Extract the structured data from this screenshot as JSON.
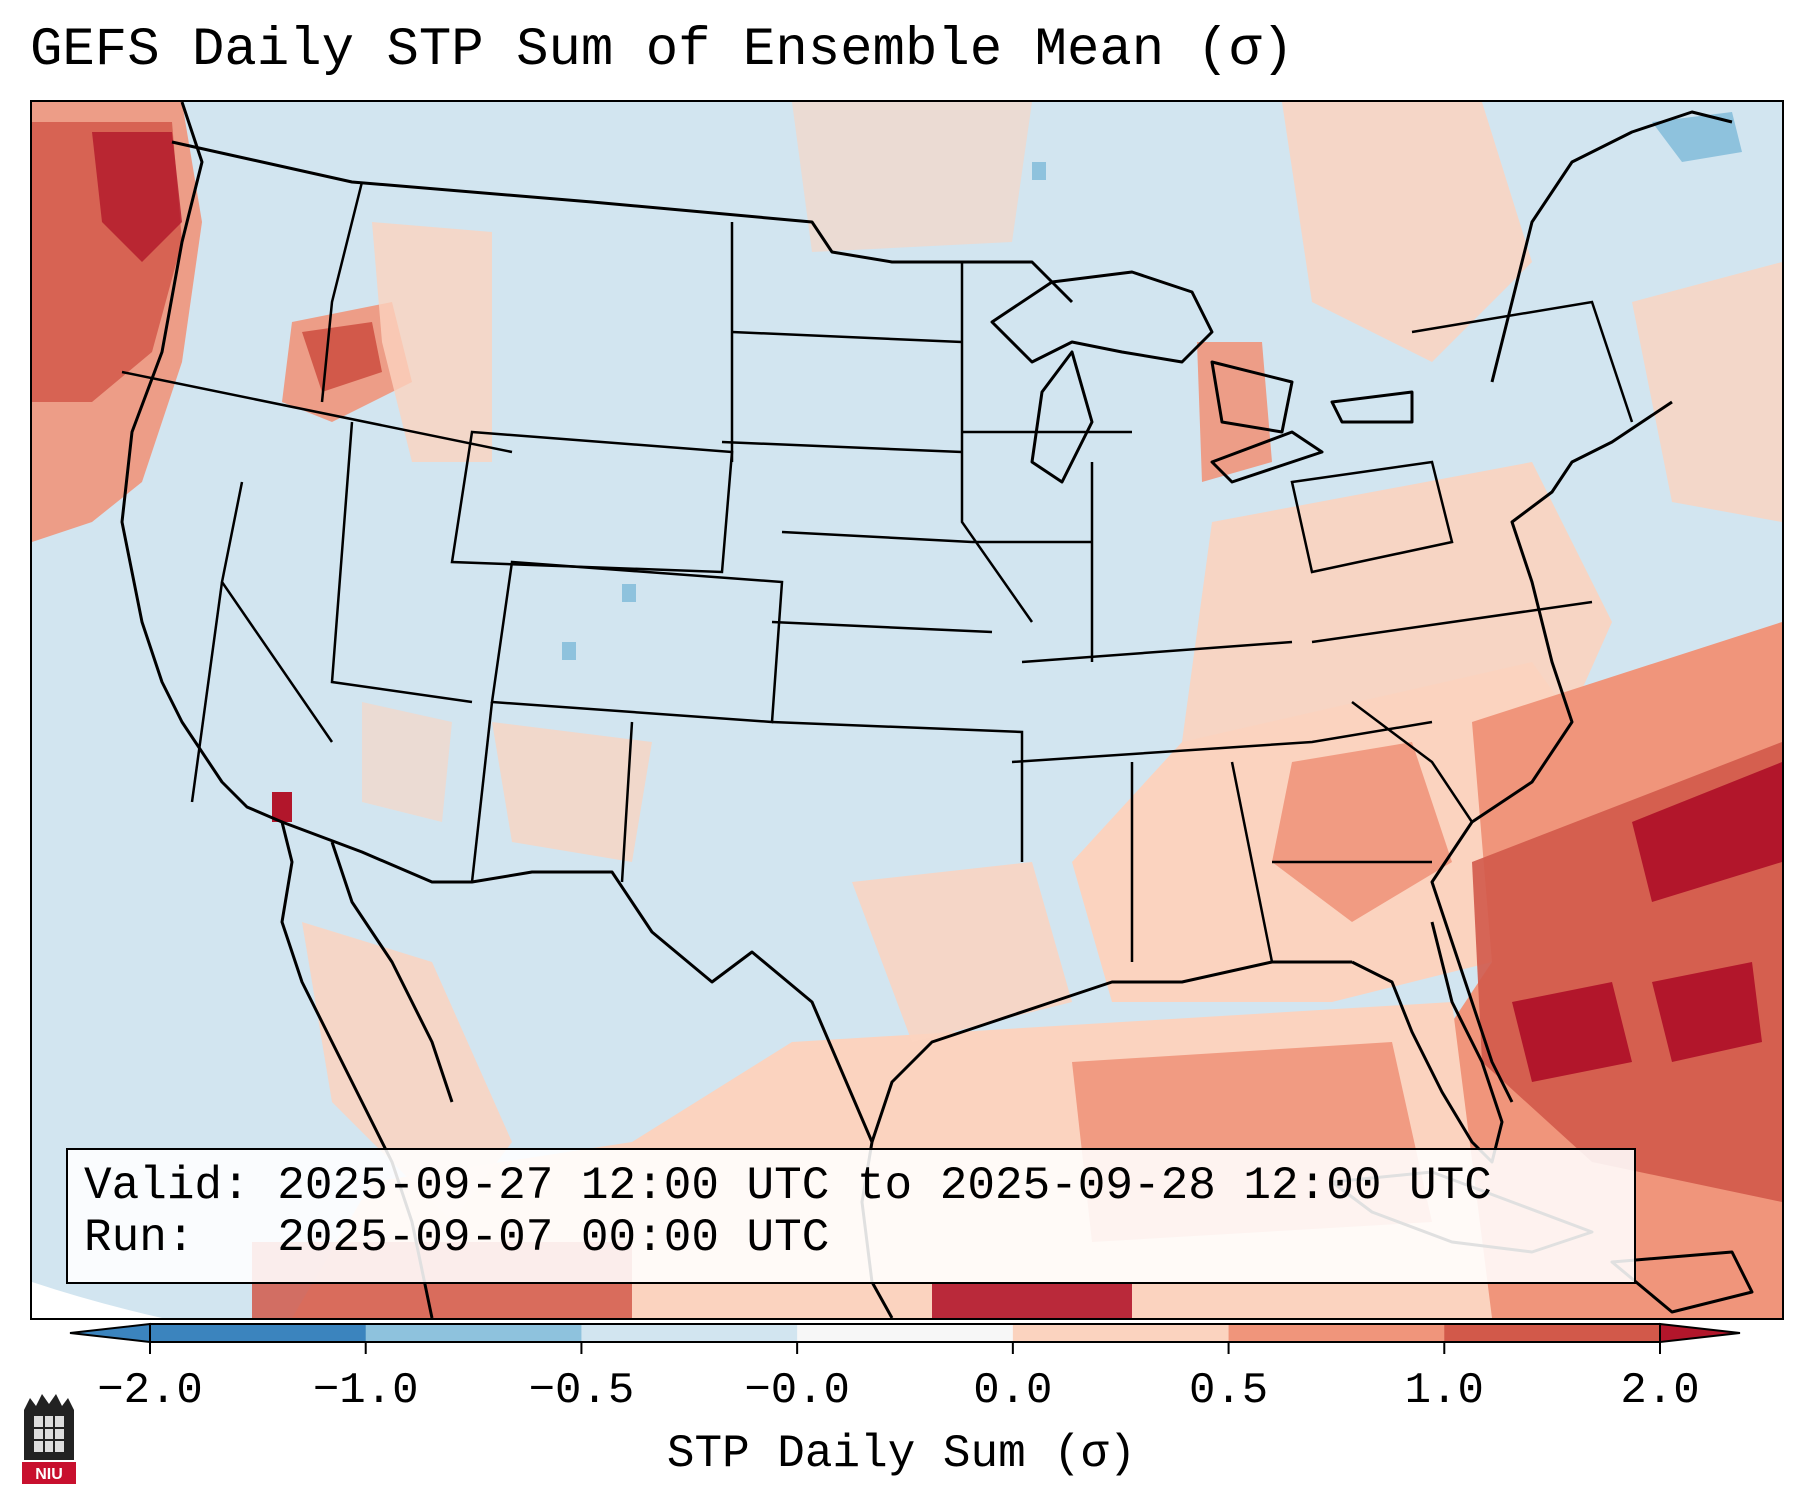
{
  "title": "GEFS Daily STP Sum of Ensemble Mean (σ)",
  "info_box": {
    "valid_label": "Valid:",
    "valid_value": "2025-09-27 12:00 UTC to 2025-09-28 12:00 UTC",
    "run_label": "Run:",
    "run_value": "2025-09-07 00:00 UTC"
  },
  "colorbar": {
    "title": "STP Daily Sum (σ)",
    "tick_labels": [
      "−2.0",
      "−1.0",
      "−0.5",
      "−0.0",
      "0.0",
      "0.5",
      "1.0",
      "2.0"
    ],
    "colors": [
      "#3b84be",
      "#8ec2dd",
      "#d2e5f0",
      "#f7f7f7",
      "#fbd3bf",
      "#f0957b",
      "#d2594a",
      "#b2162b"
    ],
    "extend": "both"
  },
  "map": {
    "background_color": "#d2e5f0",
    "region": "Continental United States",
    "anomaly_regions": [
      {
        "area": "Pacific Northwest offshore",
        "level": 1.0
      },
      {
        "area": "Southeast US coast / Gulf of Mexico",
        "level": 1.0
      },
      {
        "area": "Western Atlantic",
        "level": 2.0
      },
      {
        "area": "Northeast / Maine",
        "level": -0.5
      }
    ]
  },
  "logo": {
    "text": "NIU"
  }
}
